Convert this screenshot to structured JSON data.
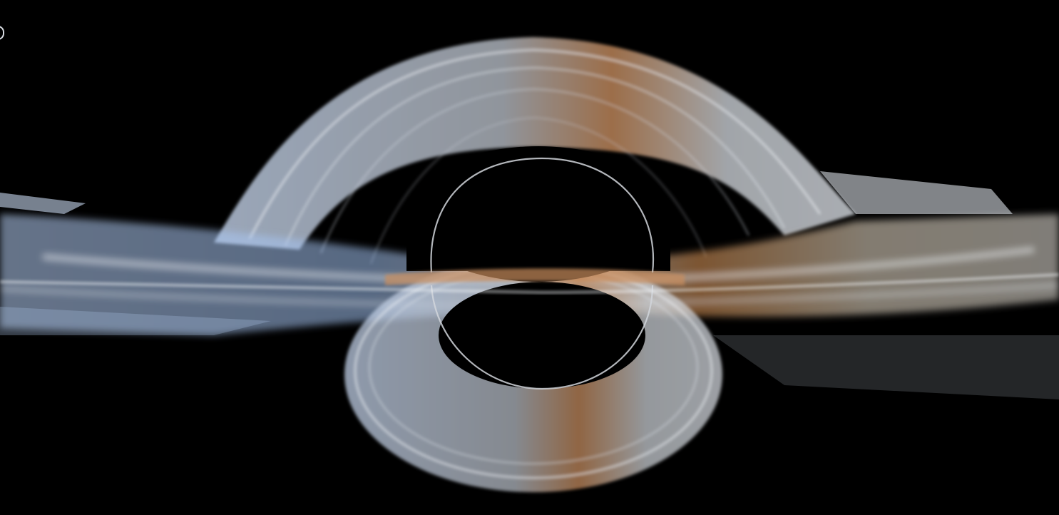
{
  "image": {
    "subject": "black-hole-accretion-disk",
    "background_color": "#000000",
    "colors": {
      "approaching_side": "#a9c6f2",
      "receding_side": "#d98a4a",
      "filaments": "#dfe6ef",
      "outer_edge": "#f0e8d8",
      "shadow": "#000000"
    }
  }
}
